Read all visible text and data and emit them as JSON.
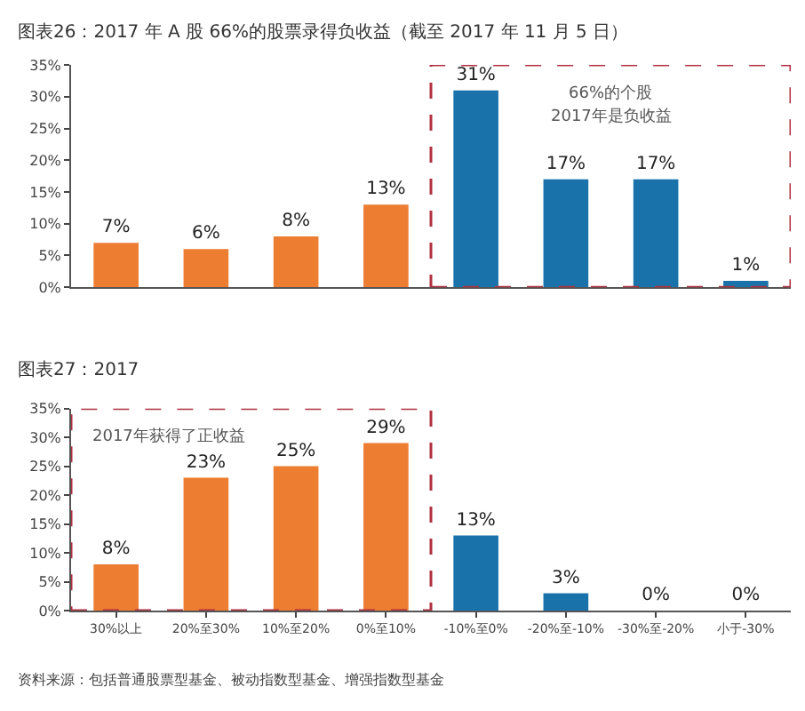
{
  "chart_data": [
    {
      "type": "bar",
      "title": "图表26：2017 年 A 股 66%的股票录得负收益（截至 2017 年 11 月 5 日）",
      "categories": [
        null,
        null,
        null,
        null,
        null,
        null,
        null,
        null
      ],
      "values": [
        7,
        6,
        8,
        13,
        31,
        17,
        17,
        1
      ],
      "colors": [
        "#ed7d31",
        "#ed7d31",
        "#ed7d31",
        "#ed7d31",
        "#1a72aa",
        "#1a72aa",
        "#1a72aa",
        "#1a72aa"
      ],
      "value_labels": [
        "7%",
        "6%",
        "8%",
        "13%",
        "31%",
        "17%",
        "17%",
        "1%"
      ],
      "ylim": [
        0,
        35
      ],
      "yticks": [
        {
          "value": 0,
          "label": "0%"
        },
        {
          "value": 5,
          "label": "5%"
        },
        {
          "value": 10,
          "label": "10%"
        },
        {
          "value": 15,
          "label": "15%"
        },
        {
          "value": 20,
          "label": "20%"
        },
        {
          "value": 25,
          "label": "25%"
        },
        {
          "value": 30,
          "label": "30%"
        },
        {
          "value": 35,
          "label": "35%"
        }
      ],
      "annotations": [
        "66%的个股",
        "2017年是负收益"
      ]
    },
    {
      "type": "bar",
      "title": "图表27：2017",
      "categories": [
        "30%以上",
        "20%至30%",
        "10%至20%",
        "0%至10%",
        "-10%至0%",
        "-20%至-10%",
        "-30%至-20%",
        "小于-30%"
      ],
      "values": [
        8,
        23,
        25,
        29,
        13,
        3,
        0,
        0
      ],
      "colors": [
        "#ed7d31",
        "#ed7d31",
        "#ed7d31",
        "#ed7d31",
        "#1a72aa",
        "#1a72aa",
        "#1a72aa",
        "#1a72aa"
      ],
      "value_labels": [
        "8%",
        "23%",
        "25%",
        "29%",
        "13%",
        "3%",
        "0%",
        "0%"
      ],
      "ylim": [
        0,
        35
      ],
      "yticks": [
        {
          "value": 0,
          "label": "0%"
        },
        {
          "value": 5,
          "label": "5%"
        },
        {
          "value": 10,
          "label": "10%"
        },
        {
          "value": 15,
          "label": "15%"
        },
        {
          "value": 20,
          "label": "20%"
        },
        {
          "value": 25,
          "label": "25%"
        },
        {
          "value": 30,
          "label": "30%"
        },
        {
          "value": 35,
          "label": "35%"
        }
      ],
      "annotations": [
        "2017年获得了正收益",
        "资料来源：包括普通股票型基金、被动指数型基金、增强指数型基金"
      ]
    }
  ]
}
